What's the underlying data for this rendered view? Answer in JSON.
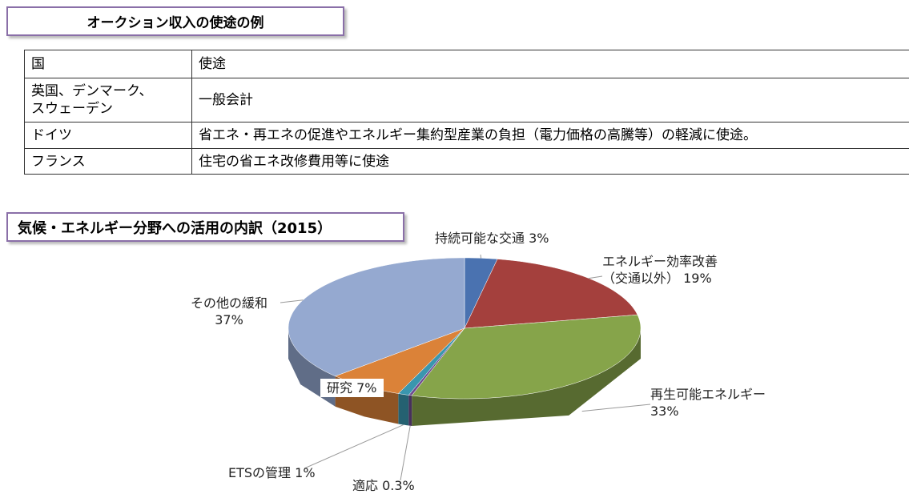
{
  "header": {
    "title": "オークション収入の使途の例"
  },
  "table": {
    "columns": [
      "国",
      "使途"
    ],
    "rows": [
      [
        "英国、デンマーク、\nスウェーデン",
        "一般会計"
      ],
      [
        "ドイツ",
        "省エネ・再エネの促進やエネルギー集約型産業の負担（電力価格の高騰等）の軽減に使途。"
      ],
      [
        "フランス",
        "住宅の省エネ改修費用等に使途"
      ]
    ]
  },
  "chart_data": {
    "type": "pie",
    "title": "気候・エネルギー分野への活用の内訳（2015）",
    "categories": [
      "持続可能な交通",
      "エネルギー効率改善\n（交通以外）",
      "再生可能エネルギー",
      "適応",
      "ETSの管理",
      "研究",
      "その他の緩和"
    ],
    "values": [
      3,
      19,
      33,
      0.3,
      1,
      7,
      37
    ],
    "value_labels": [
      "3%",
      "19%",
      "33%",
      "0.3%",
      "1%",
      "7%",
      "37%"
    ],
    "colors": [
      "#4a72b0",
      "#a4403d",
      "#86a44a",
      "#6e4a8f",
      "#3a96ae",
      "#db8238",
      "#95a9d0"
    ]
  }
}
